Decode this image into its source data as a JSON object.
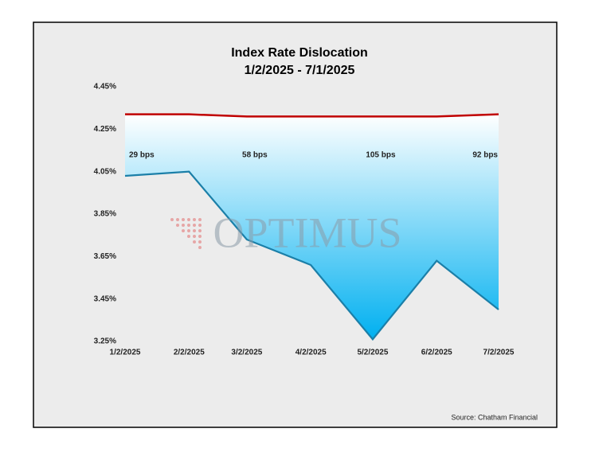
{
  "chart_data": {
    "type": "line",
    "title": "Index Rate Dislocation",
    "subtitle": "1/2/2025 - 7/1/2025",
    "x": [
      "1/2/2025",
      "2/2/2025",
      "3/2/2025",
      "4/2/2025",
      "5/2/2025",
      "6/2/2025",
      "7/2/2025"
    ],
    "series": [
      {
        "color": "#c00000",
        "values": [
          4.32,
          4.32,
          4.31,
          4.31,
          4.31,
          4.31,
          4.32
        ]
      },
      {
        "color": "#1b7fa8",
        "values": [
          4.03,
          4.05,
          3.73,
          3.61,
          3.26,
          3.63,
          3.4
        ]
      }
    ],
    "fill_colors": [
      "#ffffff",
      "#00b0f0"
    ],
    "ylim": [
      3.25,
      4.45
    ],
    "yticks": [
      {
        "value": 3.25,
        "label": "3.25%"
      },
      {
        "value": 3.45,
        "label": "3.45%"
      },
      {
        "value": 3.65,
        "label": "3.65%"
      },
      {
        "value": 3.85,
        "label": "3.85%"
      },
      {
        "value": 4.05,
        "label": "4.05%"
      },
      {
        "value": 4.25,
        "label": "4.25%"
      },
      {
        "value": 4.45,
        "label": "4.45%"
      }
    ],
    "grid": false,
    "annotations": [
      {
        "x": "1/2/2025",
        "text": "29 bps"
      },
      {
        "x": "3/2/2025",
        "text": "58 bps"
      },
      {
        "x": "5/2/2025",
        "text": "105 bps"
      },
      {
        "x": "7/2/2025",
        "text": "92 bps"
      }
    ],
    "watermark": "OPTIMUS",
    "source": "Source: Chatham Financial"
  }
}
